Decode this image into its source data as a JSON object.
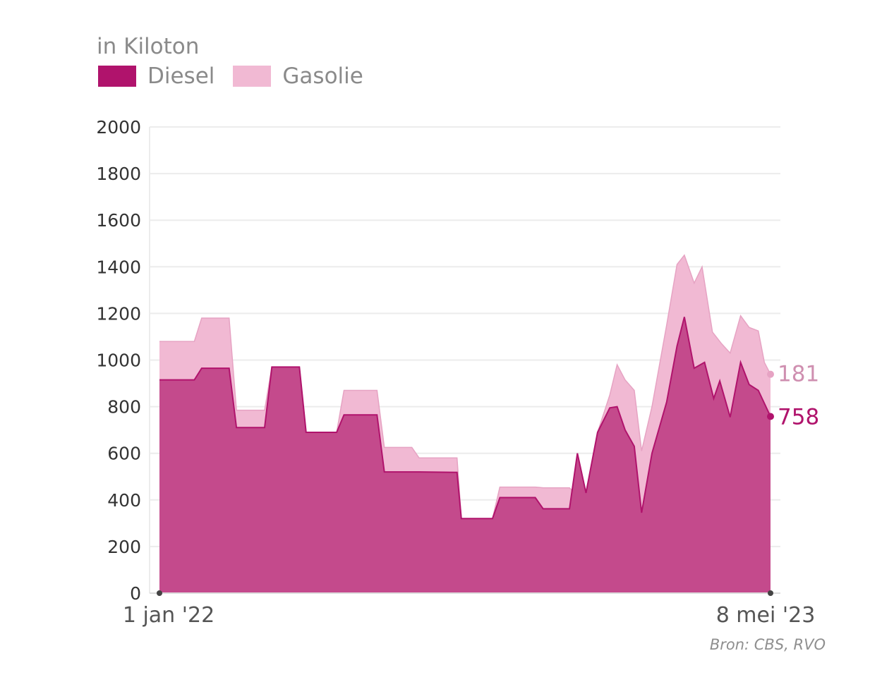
{
  "unit_label": "in Kiloton",
  "source": "Bron: CBS, RVO",
  "colors": {
    "diesel": "#b0136c",
    "diesel_fill": "#c44a8c",
    "gasolie": "#f1b9d3",
    "gasolie_line": "#e6a3c3",
    "gasolie_label": "#cf8fb0"
  },
  "chart_data": {
    "type": "area",
    "stacked": true,
    "x": [
      "2022-01-01",
      "2023-05-08"
    ],
    "x_tick_labels": [
      "1 jan '22",
      "8 mei '23"
    ],
    "ylim": [
      0,
      2000
    ],
    "y_ticks": [
      0,
      200,
      400,
      600,
      800,
      1000,
      1200,
      1400,
      1600,
      1800,
      2000
    ],
    "grid": true,
    "legend_position": "top-left",
    "end_labels": {
      "diesel": "758",
      "gasolie": "181"
    },
    "series": [
      {
        "name": "Diesel",
        "points": [
          [
            0,
            915
          ],
          [
            0.057,
            915
          ],
          [
            0.069,
            965
          ],
          [
            0.114,
            965
          ],
          [
            0.126,
            710
          ],
          [
            0.172,
            710
          ],
          [
            0.184,
            970
          ],
          [
            0.229,
            970
          ],
          [
            0.24,
            690
          ],
          [
            0.29,
            690
          ],
          [
            0.302,
            765
          ],
          [
            0.356,
            765
          ],
          [
            0.368,
            520
          ],
          [
            0.425,
            520
          ],
          [
            0.487,
            518
          ],
          [
            0.494,
            320
          ],
          [
            0.545,
            320
          ],
          [
            0.557,
            410
          ],
          [
            0.615,
            410
          ],
          [
            0.628,
            362
          ],
          [
            0.671,
            362
          ],
          [
            0.684,
            600
          ],
          [
            0.698,
            430
          ],
          [
            0.717,
            690
          ],
          [
            0.737,
            795
          ],
          [
            0.749,
            800
          ],
          [
            0.762,
            700
          ],
          [
            0.777,
            630
          ],
          [
            0.789,
            345
          ],
          [
            0.806,
            600
          ],
          [
            0.83,
            820
          ],
          [
            0.847,
            1060
          ],
          [
            0.859,
            1185
          ],
          [
            0.875,
            965
          ],
          [
            0.892,
            990
          ],
          [
            0.907,
            835
          ],
          [
            0.917,
            910
          ],
          [
            0.934,
            755
          ],
          [
            0.951,
            990
          ],
          [
            0.965,
            895
          ],
          [
            0.98,
            870
          ],
          [
            1.0,
            758
          ]
        ]
      },
      {
        "name": "Gasolie",
        "points": [
          [
            0,
            1080
          ],
          [
            0.057,
            1080
          ],
          [
            0.069,
            1180
          ],
          [
            0.114,
            1180
          ],
          [
            0.126,
            785
          ],
          [
            0.172,
            785
          ],
          [
            0.184,
            970
          ],
          [
            0.229,
            970
          ],
          [
            0.24,
            690
          ],
          [
            0.29,
            690
          ],
          [
            0.302,
            870
          ],
          [
            0.356,
            870
          ],
          [
            0.368,
            625
          ],
          [
            0.413,
            625
          ],
          [
            0.425,
            580
          ],
          [
            0.487,
            580
          ],
          [
            0.494,
            320
          ],
          [
            0.545,
            320
          ],
          [
            0.557,
            455
          ],
          [
            0.615,
            455
          ],
          [
            0.628,
            452
          ],
          [
            0.671,
            452
          ],
          [
            0.684,
            415
          ],
          [
            0.698,
            430
          ],
          [
            0.717,
            690
          ],
          [
            0.737,
            850
          ],
          [
            0.749,
            980
          ],
          [
            0.762,
            915
          ],
          [
            0.777,
            870
          ],
          [
            0.789,
            610
          ],
          [
            0.806,
            800
          ],
          [
            0.83,
            1150
          ],
          [
            0.847,
            1410
          ],
          [
            0.859,
            1450
          ],
          [
            0.875,
            1330
          ],
          [
            0.888,
            1400
          ],
          [
            0.905,
            1120
          ],
          [
            0.92,
            1070
          ],
          [
            0.934,
            1030
          ],
          [
            0.951,
            1190
          ],
          [
            0.965,
            1140
          ],
          [
            0.98,
            1125
          ],
          [
            0.99,
            990
          ],
          [
            1.0,
            939
          ]
        ]
      }
    ]
  }
}
